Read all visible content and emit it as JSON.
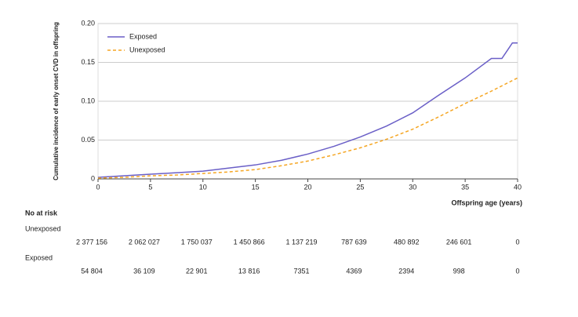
{
  "chart_data": {
    "type": "line",
    "y_label": "Cumulative incidence of early onset CVD in offspring",
    "x_label": "Offspring age (years)",
    "xlim": [
      0,
      40
    ],
    "xticks": [
      0,
      5,
      10,
      15,
      20,
      25,
      30,
      35,
      40
    ],
    "ylim": [
      0,
      0.2
    ],
    "yticks": [
      0,
      0.05,
      {
        "value": 0.1,
        "label": "0.10"
      },
      0.15,
      {
        "value": 0.2,
        "label": "0.20"
      }
    ],
    "grid": true,
    "legend": "upper left",
    "series": [
      {
        "name": "Exposed",
        "color": "#6a5fc7",
        "dash": false,
        "x": [
          0,
          2.5,
          5,
          7.5,
          10,
          12.5,
          15,
          17.5,
          20,
          22.5,
          25,
          27.5,
          30,
          32.5,
          35,
          37.5,
          38.5,
          39,
          39.5,
          40
        ],
        "values": [
          0.002,
          0.004,
          0.006,
          0.008,
          0.01,
          0.014,
          0.018,
          0.024,
          0.032,
          0.042,
          0.054,
          0.068,
          0.085,
          0.108,
          0.13,
          0.155,
          0.155,
          0.165,
          0.175,
          0.175
        ]
      },
      {
        "name": "Unexposed",
        "color": "#f5a623",
        "dash": true,
        "x": [
          0,
          2.5,
          5,
          7.5,
          10,
          12.5,
          15,
          17.5,
          20,
          22.5,
          25,
          27.5,
          30,
          32.5,
          35,
          37.5,
          40
        ],
        "values": [
          0.001,
          0.002,
          0.004,
          0.005,
          0.007,
          0.009,
          0.012,
          0.017,
          0.023,
          0.031,
          0.04,
          0.051,
          0.064,
          0.08,
          0.097,
          0.113,
          0.13
        ]
      }
    ],
    "risk_table": {
      "title": "No at risk",
      "rows": [
        {
          "name": "Unexposed",
          "counts": [
            "2 377 156",
            "2 062 027",
            "1 750 037",
            "1 450 866",
            "1 137 219",
            "787 639",
            "480 892",
            "246 601",
            "0"
          ]
        },
        {
          "name": "Exposed",
          "counts": [
            "54 804",
            "36 109",
            "22 901",
            "13 816",
            "7351",
            "4369",
            "2394",
            "998",
            "0"
          ]
        }
      ]
    }
  }
}
